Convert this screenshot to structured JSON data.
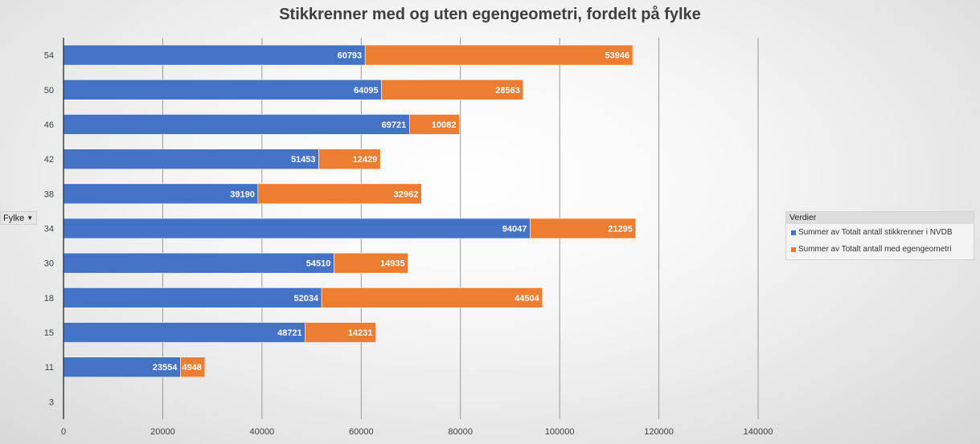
{
  "chart_data": {
    "type": "bar",
    "orientation": "horizontal",
    "stacked": true,
    "title": "Stikkrenner med og uten egengeometri, fordelt på fylke",
    "ylabel": "Fylke",
    "categories": [
      "3",
      "11",
      "15",
      "18",
      "30",
      "34",
      "38",
      "42",
      "46",
      "50",
      "54"
    ],
    "series": [
      {
        "name": "Summer av Totalt antall stikkrenner i NVDB",
        "color": "#4472c4",
        "values": [
          null,
          23554,
          48721,
          52034,
          54510,
          94047,
          39190,
          51453,
          69721,
          64095,
          60793
        ]
      },
      {
        "name": "Summer av Totalt antall med egengeometri",
        "color": "#ed7d31",
        "values": [
          null,
          4948,
          14231,
          44504,
          14935,
          21295,
          32962,
          12429,
          10082,
          28563,
          53946
        ]
      }
    ],
    "xlim": [
      0,
      140000
    ],
    "xticks": [
      "0",
      "20000",
      "40000",
      "60000",
      "80000",
      "100000",
      "120000",
      "140000"
    ],
    "grid": true,
    "legend_position": "right",
    "legend_title": "Verdier"
  },
  "filter": {
    "field_label": "Fylke"
  }
}
